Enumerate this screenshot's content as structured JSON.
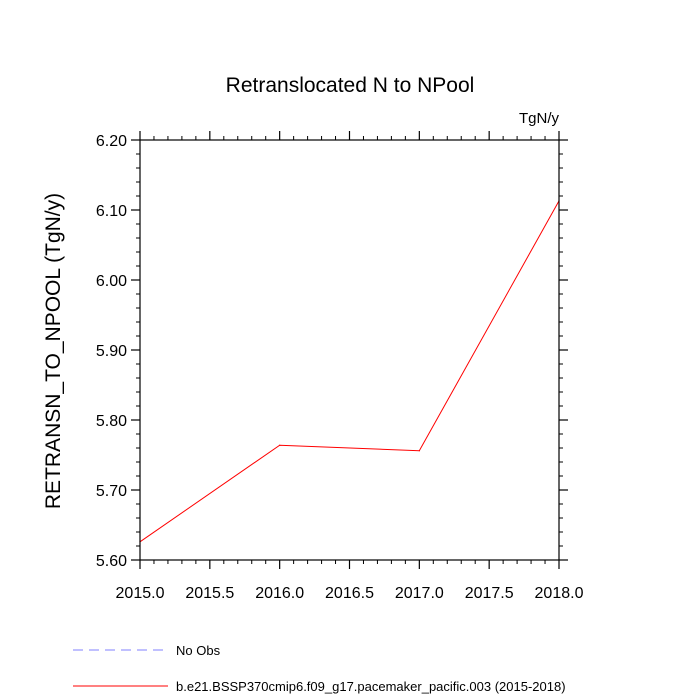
{
  "chart_data": {
    "type": "line",
    "title": "Retranslocated N to NPool",
    "units": "TgN/y",
    "xlabel": "",
    "ylabel": "RETRANSN_TO_NPOOL  (TgN/y)",
    "xlim": [
      2015.0,
      2018.0
    ],
    "ylim": [
      5.6,
      6.2
    ],
    "x_ticks": [
      "2015.0",
      "2015.5",
      "2016.0",
      "2016.5",
      "2017.0",
      "2017.5",
      "2018.0"
    ],
    "y_ticks": [
      "5.60",
      "5.70",
      "5.80",
      "5.90",
      "6.00",
      "6.10",
      "6.20"
    ],
    "grid": false,
    "series": [
      {
        "name": "b.e21.BSSP370cmip6.f09_g17.pacemaker_pacific.003 (2015-2018)",
        "color": "#ff0000",
        "dash": "solid",
        "x": [
          2015.0,
          2016.0,
          2017.0,
          2018.0
        ],
        "values": [
          5.626,
          5.764,
          5.756,
          6.113
        ]
      }
    ],
    "legend": [
      {
        "label": "No Obs",
        "color": "#8080ff",
        "dash": "dashed"
      },
      {
        "label": "b.e21.BSSP370cmip6.f09_g17.pacemaker_pacific.003 (2015-2018)",
        "color": "#ff0000",
        "dash": "solid"
      }
    ],
    "legend_position": "bottom-left"
  }
}
